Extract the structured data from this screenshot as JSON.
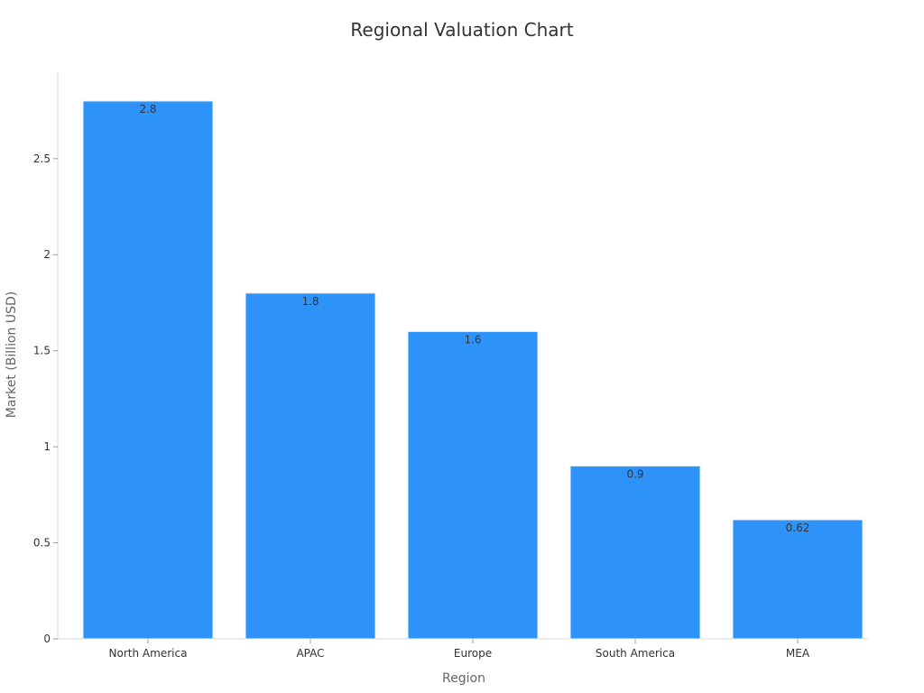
{
  "chart_data": {
    "type": "bar",
    "title": "Regional Valuation Chart",
    "xlabel": "Region",
    "ylabel": "Market (Billion USD)",
    "categories": [
      "North America",
      "APAC",
      "Europe",
      "South America",
      "MEA"
    ],
    "values": [
      2.8,
      1.8,
      1.6,
      0.9,
      0.62
    ],
    "value_labels": [
      "2.8",
      "1.8",
      "1.6",
      "0.9",
      "0.62"
    ],
    "ylim": [
      0,
      2.95
    ],
    "yticks": [
      0,
      0.5,
      1,
      1.5,
      2,
      2.5
    ],
    "ytick_labels": [
      "0",
      "0.5",
      "1",
      "1.5",
      "2",
      "2.5"
    ],
    "grid": false,
    "legend": "none",
    "colors": {
      "bar": "#2E93F8",
      "bar_edge": "#E6F0FA"
    }
  }
}
